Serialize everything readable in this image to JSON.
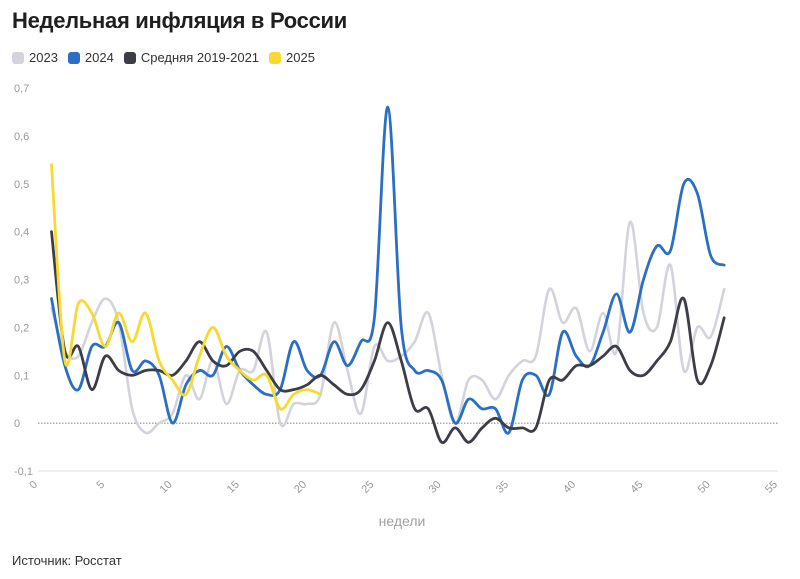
{
  "title": "Недельная инфляция в России",
  "source": "Источник: Росстат",
  "chart_data": {
    "type": "line",
    "title": "Недельная инфляция в России",
    "xlabel": "недели",
    "ylabel": "",
    "xlim": [
      0,
      55
    ],
    "ylim": [
      -0.1,
      0.7
    ],
    "x_ticks": [
      0,
      5,
      10,
      15,
      20,
      25,
      30,
      35,
      40,
      45,
      50,
      55
    ],
    "y_ticks": [
      -0.1,
      0,
      0.1,
      0.2,
      0.3,
      0.4,
      0.5,
      0.6,
      0.7
    ],
    "y_tick_labels": [
      "-0,1",
      "0",
      "0,1",
      "0,2",
      "0,3",
      "0,4",
      "0,5",
      "0,6",
      "0,7"
    ],
    "grid": false,
    "legend_position": "top-left",
    "series": [
      {
        "name": "2023",
        "color": "#d3d3de",
        "x": [
          1,
          2,
          3,
          4,
          5,
          6,
          7,
          8,
          9,
          10,
          11,
          12,
          13,
          14,
          15,
          16,
          17,
          18,
          19,
          20,
          21,
          22,
          23,
          24,
          25,
          26,
          27,
          28,
          29,
          30,
          31,
          32,
          33,
          34,
          35,
          36,
          37,
          38,
          39,
          40,
          41,
          42,
          43,
          44,
          45,
          46,
          47,
          48,
          49,
          50,
          51
        ],
        "y": [
          0.24,
          0.15,
          0.14,
          0.21,
          0.26,
          0.21,
          0.03,
          -0.02,
          0.0,
          0.02,
          0.1,
          0.05,
          0.13,
          0.04,
          0.11,
          0.11,
          0.19,
          0.0,
          0.04,
          0.04,
          0.06,
          0.21,
          0.11,
          0.02,
          0.16,
          0.13,
          0.14,
          0.17,
          0.23,
          0.1,
          0.0,
          0.09,
          0.09,
          0.05,
          0.1,
          0.13,
          0.14,
          0.28,
          0.21,
          0.24,
          0.15,
          0.23,
          0.15,
          0.42,
          0.23,
          0.2,
          0.33,
          0.11,
          0.2,
          0.18,
          0.28
        ]
      },
      {
        "name": "2024",
        "color": "#2b6fc4",
        "x": [
          1,
          2,
          3,
          4,
          5,
          6,
          7,
          8,
          9,
          10,
          11,
          12,
          13,
          14,
          15,
          16,
          17,
          18,
          19,
          20,
          21,
          22,
          23,
          24,
          25,
          26,
          27,
          28,
          29,
          30,
          31,
          32,
          33,
          34,
          35,
          36,
          37,
          38,
          39,
          40,
          41,
          42,
          43,
          44,
          45,
          46,
          47,
          48,
          49,
          50,
          51
        ],
        "y": [
          0.26,
          0.12,
          0.07,
          0.16,
          0.16,
          0.21,
          0.11,
          0.13,
          0.1,
          0.0,
          0.08,
          0.11,
          0.1,
          0.16,
          0.11,
          0.08,
          0.06,
          0.07,
          0.17,
          0.11,
          0.1,
          0.17,
          0.12,
          0.17,
          0.22,
          0.66,
          0.2,
          0.11,
          0.11,
          0.09,
          0.0,
          0.05,
          0.03,
          0.03,
          -0.02,
          0.09,
          0.1,
          0.06,
          0.19,
          0.14,
          0.12,
          0.19,
          0.27,
          0.19,
          0.3,
          0.37,
          0.36,
          0.5,
          0.48,
          0.35,
          0.33
        ]
      },
      {
        "name": "Средняя 2019-2021",
        "color": "#3c3d47",
        "x": [
          1,
          2,
          3,
          4,
          5,
          6,
          7,
          8,
          9,
          10,
          11,
          12,
          13,
          14,
          15,
          16,
          17,
          18,
          19,
          20,
          21,
          22,
          23,
          24,
          25,
          26,
          27,
          28,
          29,
          30,
          31,
          32,
          33,
          34,
          35,
          36,
          37,
          38,
          39,
          40,
          41,
          42,
          43,
          44,
          45,
          46,
          47,
          48,
          49,
          50,
          51
        ],
        "y": [
          0.4,
          0.15,
          0.16,
          0.07,
          0.14,
          0.11,
          0.1,
          0.11,
          0.11,
          0.1,
          0.13,
          0.17,
          0.13,
          0.12,
          0.15,
          0.15,
          0.11,
          0.07,
          0.07,
          0.08,
          0.1,
          0.08,
          0.06,
          0.07,
          0.13,
          0.21,
          0.13,
          0.03,
          0.03,
          -0.04,
          -0.01,
          -0.04,
          -0.01,
          0.01,
          -0.01,
          -0.01,
          -0.01,
          0.09,
          0.09,
          0.12,
          0.12,
          0.14,
          0.16,
          0.11,
          0.1,
          0.13,
          0.17,
          0.26,
          0.09,
          0.12,
          0.22
        ]
      },
      {
        "name": "2025",
        "color": "#f7d930",
        "x": [
          1,
          2,
          3,
          4,
          5,
          6,
          7,
          8,
          9,
          10,
          11,
          12,
          13,
          14,
          15,
          16,
          17,
          18,
          19,
          20,
          21
        ],
        "y": [
          0.54,
          0.13,
          0.25,
          0.23,
          0.16,
          0.23,
          0.17,
          0.23,
          0.13,
          0.09,
          0.06,
          0.14,
          0.2,
          0.14,
          0.11,
          0.09,
          0.1,
          0.03,
          0.06,
          0.07,
          0.06
        ]
      }
    ]
  }
}
